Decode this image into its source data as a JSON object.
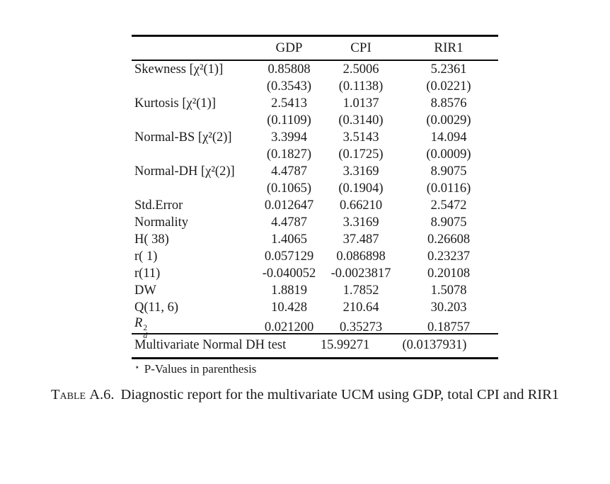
{
  "colors": {
    "background": "#ffffff",
    "text": "#1b1b1b",
    "rule": "#0d0d0d"
  },
  "table": {
    "columns": [
      "GDP",
      "CPI",
      "RIR1"
    ],
    "rows": [
      {
        "label": "Skewness [χ²(1)]",
        "values": [
          "0.85808",
          "2.5006",
          "5.2361"
        ],
        "pvalues": [
          "(0.3543)",
          "(0.1138)",
          "(0.0221)"
        ]
      },
      {
        "label": "Kurtosis [χ²(1)]",
        "values": [
          "2.5413",
          "1.0137",
          "8.8576"
        ],
        "pvalues": [
          "(0.1109)",
          "(0.3140)",
          "(0.0029)"
        ]
      },
      {
        "label": "Normal-BS [χ²(2)]",
        "values": [
          "3.3994",
          "3.5143",
          "14.094"
        ],
        "pvalues": [
          "(0.1827)",
          "(0.1725)",
          "(0.0009)"
        ]
      },
      {
        "label": "Normal-DH [χ²(2)]",
        "values": [
          "4.4787",
          "3.3169",
          "8.9075"
        ],
        "pvalues": [
          "(0.1065)",
          "(0.1904)",
          "(0.0116)"
        ]
      },
      {
        "label": "Std.Error",
        "values": [
          "0.012647",
          "0.66210",
          "2.5472"
        ]
      },
      {
        "label": "Normality",
        "values": [
          "4.4787",
          "3.3169",
          "8.9075"
        ]
      },
      {
        "label": "H( 38)",
        "values": [
          "1.4065",
          "37.487",
          "0.26608"
        ]
      },
      {
        "label": "r( 1)",
        "values": [
          "0.057129",
          "0.086898",
          "0.23237"
        ]
      },
      {
        "label": "r(11)",
        "values": [
          "-0.040052",
          "-0.0023817",
          "0.20108"
        ]
      },
      {
        "label": "DW",
        "values": [
          "1.8819",
          "1.7852",
          "1.5078"
        ]
      },
      {
        "label": "Q(11, 6)",
        "values": [
          "10.428",
          "210.64",
          "30.203"
        ]
      },
      {
        "label": {
          "base": "R",
          "sup": "2",
          "sub": "d"
        },
        "values": [
          "0.021200",
          "0.35273",
          "0.18757"
        ]
      }
    ],
    "summary": {
      "label": "Multivariate Normal DH test",
      "value": "15.99271",
      "pvalue": "(0.0137931)"
    },
    "footnote": {
      "star": "⋆",
      "text": "P-Values in parenthesis"
    }
  },
  "caption": {
    "tag": "Table",
    "number": "A.6.",
    "text": "Diagnostic report for the multivariate UCM using GDP, total CPI and RIR1"
  }
}
